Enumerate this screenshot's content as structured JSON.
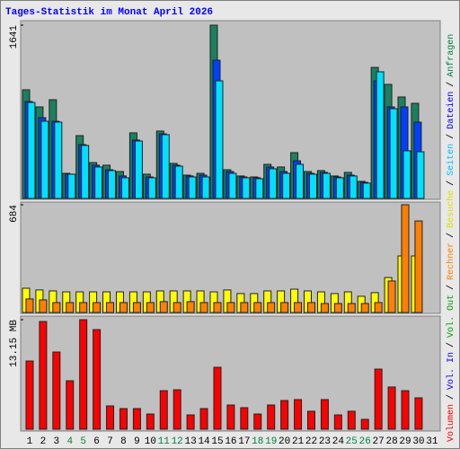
{
  "title": "Tages-Statistik im Monat April 2026",
  "separator": "/",
  "chart_data": [
    {
      "type": "bar",
      "ylim": [
        0,
        1641
      ],
      "yticks": [
        1641
      ],
      "series": [
        {
          "name": "Anfragen",
          "color": "#1a8060",
          "legend_color": "#008040",
          "values": [
            1029,
            867,
            935,
            238,
            595,
            340,
            315,
            255,
            621,
            230,
            638,
            332,
            221,
            238,
            1641,
            272,
            213,
            204,
            323,
            298,
            434,
            255,
            264,
            213,
            247,
            162,
            1241,
            1080,
            961,
            901,
            0
          ]
        },
        {
          "name": "Dateien",
          "color": "#0040ff",
          "legend_color": "#0000ff",
          "values": [
            918,
            765,
            731,
            230,
            510,
            315,
            272,
            213,
            553,
            204,
            612,
            315,
            213,
            221,
            1309,
            255,
            204,
            196,
            298,
            255,
            357,
            238,
            247,
            204,
            221,
            153,
            1114,
            867,
            867,
            723,
            0
          ]
        },
        {
          "name": "Seiten",
          "color": "#00e0ff",
          "legend_color": "#00c0ff",
          "values": [
            909,
            731,
            723,
            230,
            502,
            298,
            264,
            196,
            544,
            196,
            604,
            306,
            204,
            204,
            1114,
            238,
            196,
            187,
            281,
            238,
            323,
            230,
            238,
            196,
            213,
            145,
            1199,
            850,
            451,
            442,
            0
          ]
        }
      ]
    },
    {
      "type": "bar",
      "ylim": [
        0,
        684
      ],
      "yticks": [
        684
      ],
      "series": [
        {
          "name": "Besuche",
          "color": "#ffff00",
          "legend_color": "#e0e000",
          "values": [
            154,
            143,
            137,
            131,
            131,
            131,
            131,
            131,
            131,
            131,
            137,
            137,
            137,
            137,
            131,
            143,
            120,
            120,
            137,
            137,
            148,
            137,
            131,
            120,
            131,
            103,
            126,
            222,
            359,
            359,
            0
          ]
        },
        {
          "name": "Rechner",
          "color": "#ff8000",
          "legend_color": "#ff8000",
          "values": [
            86,
            80,
            63,
            63,
            63,
            63,
            63,
            63,
            63,
            63,
            69,
            63,
            69,
            63,
            63,
            63,
            63,
            63,
            63,
            63,
            63,
            63,
            57,
            57,
            57,
            57,
            63,
            200,
            684,
            581,
            0
          ]
        }
      ]
    },
    {
      "type": "bar",
      "ylim": [
        0,
        13.15
      ],
      "yticks": [
        {
          "value": 13.15,
          "label": "13.15 MB"
        }
      ],
      "series": [
        {
          "name": "Volumen",
          "color": "#ff0000",
          "legend_color": "#ff0000",
          "values": [
            8.19,
            12.93,
            9.27,
            5.82,
            13.15,
            11.96,
            2.8,
            2.48,
            2.48,
            1.83,
            4.63,
            4.74,
            1.72,
            2.48,
            7.44,
            2.91,
            2.59,
            1.83,
            2.91,
            3.45,
            3.56,
            2.16,
            3.56,
            1.72,
            2.16,
            1.19,
            7.22,
            5.07,
            4.63,
            3.77,
            0
          ]
        }
      ],
      "legend_only": [
        {
          "name": "Vol. In",
          "color": "#0000ff"
        },
        {
          "name": "Vol. Out",
          "color": "#00a000"
        }
      ],
      "categories": [
        "1",
        "2",
        "3",
        "4",
        "5",
        "6",
        "7",
        "8",
        "9",
        "10",
        "11",
        "12",
        "13",
        "14",
        "15",
        "16",
        "17",
        "18",
        "19",
        "20",
        "21",
        "22",
        "23",
        "24",
        "25",
        "26",
        "27",
        "28",
        "29",
        "30",
        "31"
      ],
      "category_colors": [
        "#000000",
        "#000000",
        "#000000",
        "#008040",
        "#008040",
        "#000000",
        "#000000",
        "#000000",
        "#000000",
        "#000000",
        "#008040",
        "#008040",
        "#000000",
        "#000000",
        "#000000",
        "#000000",
        "#000000",
        "#008040",
        "#008040",
        "#000000",
        "#000000",
        "#000000",
        "#000000",
        "#000000",
        "#008040",
        "#008040",
        "#000000",
        "#000000",
        "#000000",
        "#000000",
        "#000000"
      ]
    }
  ]
}
